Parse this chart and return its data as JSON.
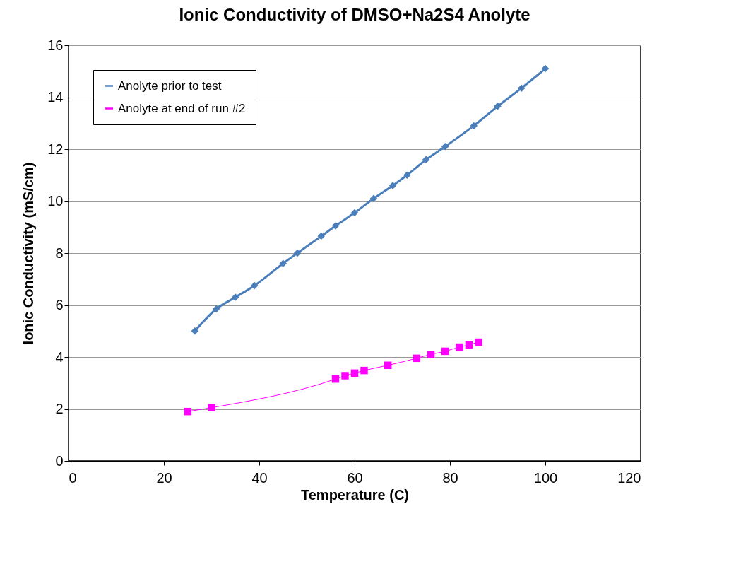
{
  "chart_data": {
    "type": "line",
    "title": "Ionic Conductivity of DMSO+Na2S4 Anolyte",
    "xlabel": "Temperature (C)",
    "ylabel": "Ionic Conductivity (mS/cm)",
    "xlim": [
      0,
      120
    ],
    "xticks": [
      0,
      20,
      40,
      60,
      80,
      100,
      120
    ],
    "ylim": [
      0,
      16
    ],
    "yticks": [
      0,
      2,
      4,
      6,
      8,
      10,
      12,
      14,
      16
    ],
    "grid": "y",
    "legend": "top left",
    "series": [
      {
        "name": "Anolyte prior to test",
        "color": "#4a7ebb",
        "marker": "diamond",
        "x": [
          26.5,
          31,
          35,
          39,
          45,
          48,
          53,
          56,
          60,
          64,
          68,
          71,
          75,
          79,
          85,
          90,
          95,
          100
        ],
        "values": [
          5.0,
          5.85,
          6.3,
          6.75,
          7.6,
          8.0,
          8.65,
          9.05,
          9.55,
          10.1,
          10.6,
          11.0,
          11.6,
          12.1,
          12.9,
          13.65,
          14.35,
          15.1
        ]
      },
      {
        "name": "Anolyte at end of run #2",
        "color": "#ff00ff",
        "marker": "square",
        "x": [
          25,
          30,
          56,
          58,
          60,
          62,
          67,
          73,
          76,
          79,
          82,
          84,
          86
        ],
        "values": [
          1.9,
          2.05,
          3.15,
          3.28,
          3.38,
          3.48,
          3.68,
          3.95,
          4.1,
          4.22,
          4.38,
          4.47,
          4.57
        ]
      }
    ]
  }
}
